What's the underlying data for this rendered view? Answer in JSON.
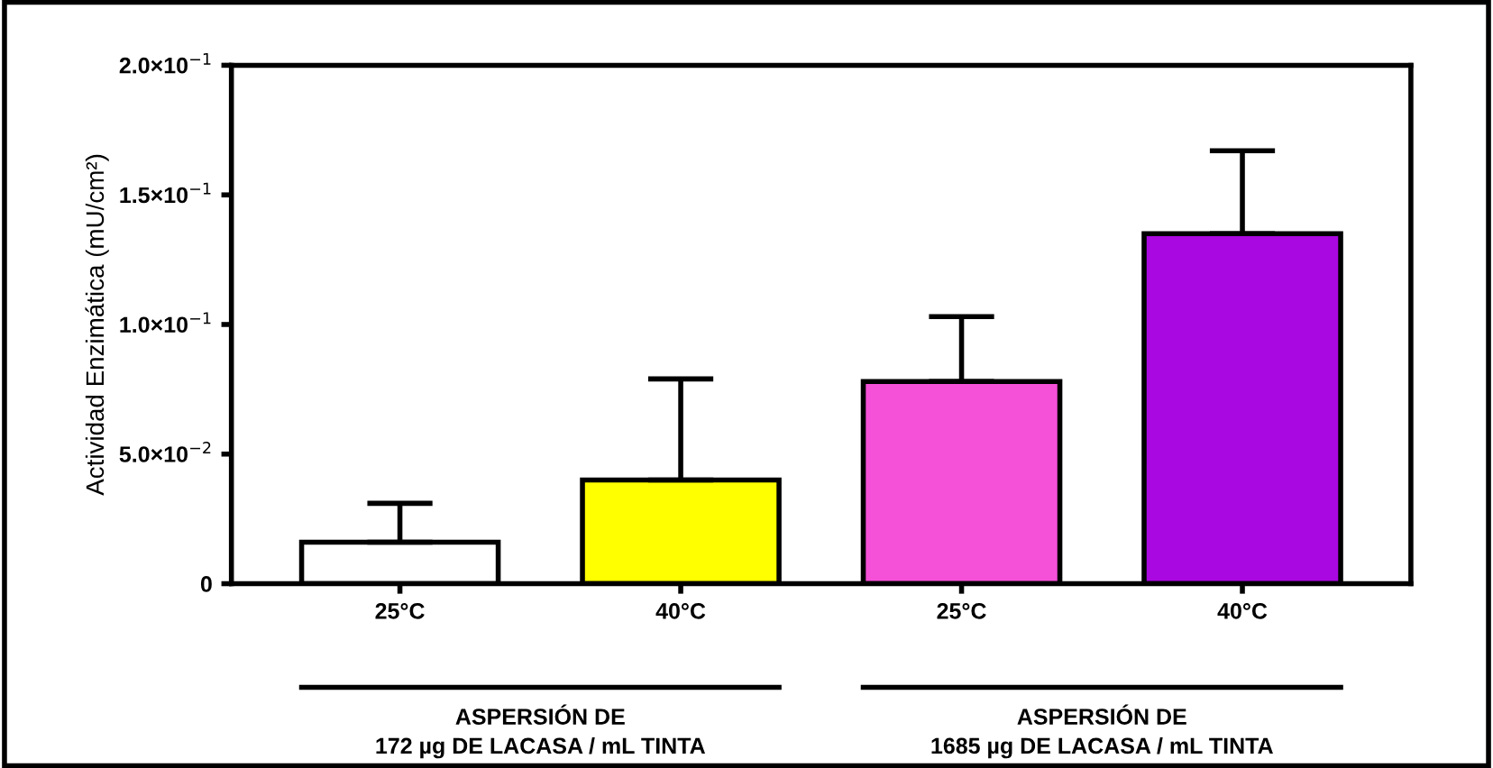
{
  "chart_data": {
    "type": "bar",
    "ylabel": "Actividad Enzimática (mU/cm²)",
    "categories": [
      "25°C",
      "40°C",
      "25°C",
      "40°C"
    ],
    "values": [
      0.016,
      0.04,
      0.078,
      0.135
    ],
    "errors": [
      [
        0.016,
        0.031
      ],
      [
        0.04,
        0.079
      ],
      [
        0.078,
        0.103
      ],
      [
        0.135,
        0.167
      ]
    ],
    "colors": [
      "#ffffff",
      "#ffff00",
      "#f550d8",
      "#aa08e0"
    ],
    "ylim": [
      0,
      0.2
    ],
    "yticks": [
      {
        "value": 0,
        "label": "0"
      },
      {
        "value": 0.05,
        "label": "5.0×10$^{−2}$"
      },
      {
        "value": 0.1,
        "label": "1.0×10$^{−1}$"
      },
      {
        "value": 0.15,
        "label": "1.5×10$^{−1}$"
      },
      {
        "value": 0.2,
        "label": "2.0×10$^{−1}$"
      }
    ],
    "grid": false,
    "annotations": [
      "ASPERSIÓN DE\n172 µg DE LACASA / mL TINTA",
      "ASPERSIÓN DE\n1685 µg DE LACASA / mL TINTA"
    ]
  }
}
